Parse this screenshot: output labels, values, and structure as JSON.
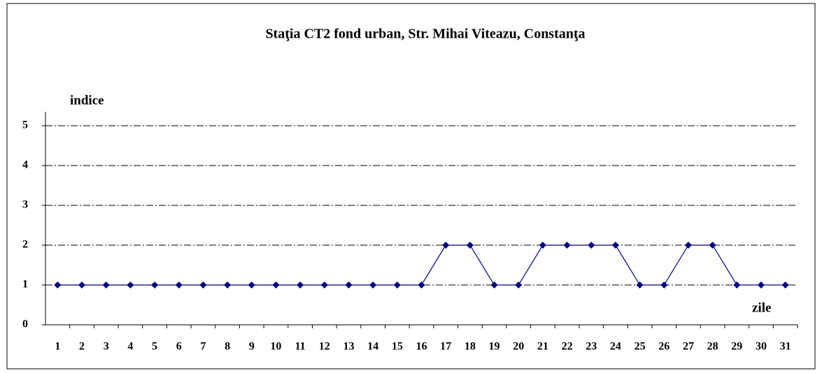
{
  "chart_data": {
    "type": "line",
    "title": "Staţia CT2 fond urban, Str. Mihai Viteazu, Constanţa",
    "y_label": "indice",
    "x_label": "zile",
    "categories": [
      "1",
      "2",
      "3",
      "4",
      "5",
      "6",
      "7",
      "8",
      "9",
      "10",
      "11",
      "12",
      "13",
      "14",
      "15",
      "16",
      "17",
      "18",
      "19",
      "20",
      "21",
      "22",
      "23",
      "24",
      "25",
      "26",
      "27",
      "28",
      "29",
      "30",
      "31"
    ],
    "values": [
      1,
      1,
      1,
      1,
      1,
      1,
      1,
      1,
      1,
      1,
      1,
      1,
      1,
      1,
      1,
      1,
      2,
      2,
      1,
      1,
      2,
      2,
      2,
      2,
      1,
      1,
      2,
      2,
      1,
      1,
      1
    ],
    "color": "#000080",
    "ylim": [
      0,
      5
    ],
    "yticks": [
      0,
      1,
      2,
      3,
      4,
      5
    ],
    "grid": true
  }
}
